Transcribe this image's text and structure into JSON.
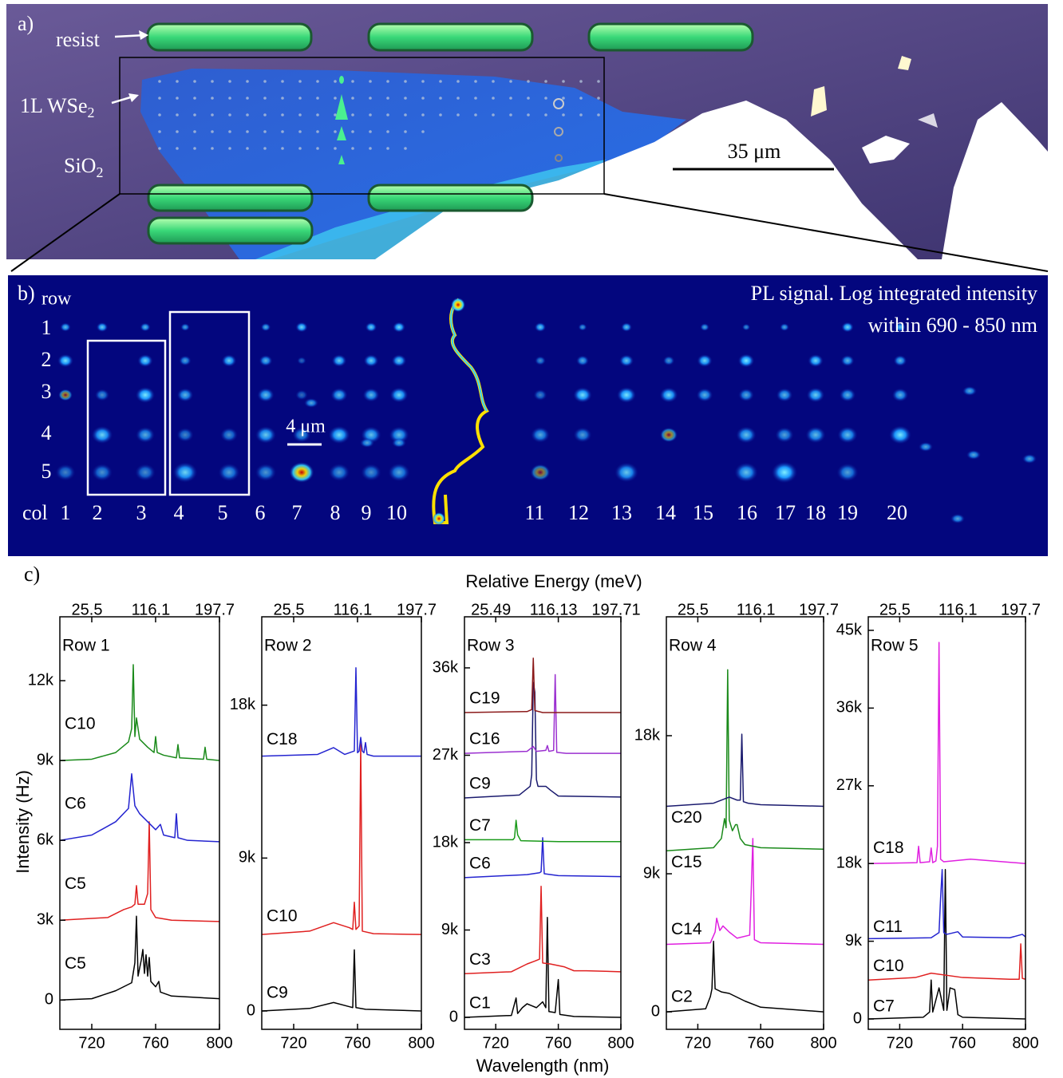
{
  "panel_a": {
    "label": "a)",
    "resist": "resist",
    "flake": {
      "text": "1L WSe",
      "sub": "2"
    },
    "substrate": {
      "text": "SiO",
      "sub": "2"
    },
    "scale_bar": "35 μm"
  },
  "panel_b": {
    "label": "b)",
    "row_label": "row",
    "rows": [
      "1",
      "2",
      "3",
      "4",
      "5"
    ],
    "col_label": "col",
    "cols": [
      "1",
      "2",
      "3",
      "4",
      "5",
      "6",
      "7",
      "8",
      "9",
      "10",
      "11",
      "12",
      "13",
      "14",
      "15",
      "16",
      "17",
      "18",
      "19",
      "20"
    ],
    "title_line1": "PL signal. Log integrated intensity",
    "title_line2": "within 690 - 850 nm",
    "scale_bar": "4 μm"
  },
  "panel_c": {
    "label": "c)",
    "top_axis_label": "Relative Energy (meV)",
    "y_axis_label": "Intensity (Hz)",
    "x_axis_label": "Wavelength (nm)"
  },
  "chart_data": [
    {
      "type": "line",
      "title": "Row 1",
      "xlim": [
        700,
        800
      ],
      "xticks": [
        720,
        760,
        800
      ],
      "x2lim": [
        -23.7,
        197.7
      ],
      "x2ticks": [
        25.5,
        116.1,
        197.7
      ],
      "ylim": [
        -1100,
        14400
      ],
      "yticks": [
        0,
        {
          "value": 3000,
          "label": "3k"
        },
        {
          "value": 6000,
          "label": "6k"
        },
        {
          "value": 9000,
          "label": "9k"
        },
        {
          "value": 12000,
          "label": "12k"
        }
      ],
      "series": [
        {
          "name": "C5",
          "color": "#000000",
          "x": [
            700,
            720,
            735,
            745,
            747,
            748,
            749,
            751,
            752,
            753,
            754,
            755,
            756,
            757,
            760,
            762,
            763,
            770,
            800
          ],
          "values": [
            0,
            50,
            350,
            650,
            1400,
            3150,
            900,
            1500,
            1900,
            1000,
            1700,
            900,
            1600,
            700,
            500,
            700,
            300,
            150,
            50
          ]
        },
        {
          "name": "C5",
          "color": "#e02020",
          "x": [
            700,
            730,
            740,
            745,
            747,
            748,
            749,
            753,
            755,
            756,
            757,
            760,
            770,
            800
          ],
          "values": [
            3000,
            3100,
            3400,
            3500,
            3600,
            4300,
            3600,
            3600,
            4000,
            6700,
            3400,
            3100,
            3000,
            2950
          ]
        },
        {
          "name": "C6",
          "color": "#2424d0",
          "x": [
            700,
            720,
            735,
            743,
            745,
            747,
            750,
            755,
            760,
            763,
            765,
            772,
            773,
            774,
            780,
            800
          ],
          "values": [
            6000,
            6200,
            6700,
            7200,
            8500,
            7300,
            7000,
            6700,
            6400,
            6600,
            6200,
            6100,
            7000,
            6100,
            6000,
            5950
          ]
        },
        {
          "name": "C10",
          "color": "#1a8a1a",
          "x": [
            700,
            720,
            735,
            743,
            745,
            746,
            747,
            748,
            750,
            755,
            759,
            760,
            761,
            765,
            773,
            774,
            775,
            790,
            791,
            792,
            800
          ],
          "values": [
            9000,
            9050,
            9300,
            9700,
            10200,
            12600,
            9900,
            10600,
            9800,
            9500,
            9300,
            9900,
            9300,
            9200,
            9100,
            9600,
            9100,
            9050,
            9500,
            9050,
            9000
          ]
        }
      ]
    },
    {
      "type": "line",
      "title": "Row 2",
      "xlim": [
        700,
        800
      ],
      "xticks": [
        720,
        760,
        800
      ],
      "x2lim": [
        -23.7,
        197.7
      ],
      "x2ticks": [
        25.5,
        116.1,
        197.7
      ],
      "ylim": [
        -1080,
        23200
      ],
      "yticks": [
        0,
        {
          "value": 9000,
          "label": "9k"
        },
        {
          "value": 18000,
          "label": "18k"
        }
      ],
      "series": [
        {
          "name": "C9",
          "color": "#000000",
          "x": [
            700,
            730,
            745,
            755,
            757,
            758,
            759,
            765,
            800
          ],
          "values": [
            0,
            150,
            500,
            250,
            200,
            3600,
            200,
            100,
            0
          ]
        },
        {
          "name": "C10",
          "color": "#e02020",
          "x": [
            700,
            730,
            745,
            755,
            757,
            758,
            759,
            761,
            762,
            763,
            770,
            800
          ],
          "values": [
            4500,
            4700,
            5200,
            4900,
            4800,
            6400,
            4800,
            5000,
            15800,
            4700,
            4550,
            4500
          ]
        },
        {
          "name": "C18",
          "color": "#2424d0",
          "x": [
            700,
            735,
            745,
            752,
            758,
            759,
            760,
            761,
            762,
            763,
            764,
            765,
            766,
            770,
            800
          ],
          "values": [
            15000,
            15100,
            15500,
            15100,
            15300,
            20200,
            15200,
            15300,
            16100,
            15300,
            15200,
            15800,
            15100,
            15000,
            15000
          ]
        }
      ]
    },
    {
      "type": "line",
      "title": "Row 3",
      "xlim": [
        700,
        800
      ],
      "xticks": [
        720,
        760,
        800
      ],
      "x2lim": [
        -23.71,
        197.71
      ],
      "x2ticks": [
        25.49,
        116.13,
        197.71
      ],
      "ylim": [
        -1230,
        41260
      ],
      "yticks": [
        0,
        {
          "value": 9000,
          "label": "9k"
        },
        {
          "value": 18000,
          "label": "18k"
        },
        {
          "value": 27000,
          "label": "27k"
        },
        {
          "value": 36000,
          "label": "36k"
        }
      ],
      "series": [
        {
          "name": "C1",
          "color": "#000000",
          "x": [
            700,
            730,
            733,
            734,
            737,
            740,
            743,
            746,
            750,
            752,
            753,
            754,
            758,
            760,
            761,
            770,
            800
          ],
          "values": [
            0,
            200,
            2000,
            400,
            1000,
            1400,
            1200,
            1000,
            1600,
            1000,
            10300,
            600,
            500,
            3900,
            300,
            100,
            0
          ]
        },
        {
          "name": "C3",
          "color": "#e02020",
          "x": [
            700,
            730,
            740,
            745,
            748,
            749,
            750,
            755,
            764,
            770,
            778,
            800
          ],
          "values": [
            4500,
            4700,
            5500,
            5800,
            6000,
            13500,
            5600,
            5500,
            5200,
            4800,
            4800,
            4700
          ]
        },
        {
          "name": "C6",
          "color": "#2424d0",
          "x": [
            700,
            740,
            748,
            749,
            750,
            751,
            760,
            800
          ],
          "values": [
            14400,
            14700,
            14900,
            15000,
            18500,
            14800,
            14600,
            14500
          ]
        },
        {
          "name": "C7",
          "color": "#1a9a1a",
          "x": [
            700,
            731,
            732,
            733,
            734,
            736,
            760,
            800
          ],
          "values": [
            18300,
            18300,
            18500,
            20300,
            18800,
            18200,
            18100,
            18100
          ]
        },
        {
          "name": "C9",
          "color": "#1a1a6e",
          "x": [
            700,
            735,
            742,
            743,
            744,
            745,
            746,
            747,
            752,
            755,
            760,
            800
          ],
          "values": [
            22600,
            22900,
            23800,
            25000,
            34500,
            33500,
            24500,
            23800,
            23800,
            23400,
            22800,
            22700
          ]
        },
        {
          "name": "C16",
          "color": "#9b30d0",
          "x": [
            700,
            740,
            744,
            746,
            752,
            753,
            754,
            757,
            758,
            759,
            765,
            800
          ],
          "values": [
            27200,
            27400,
            27900,
            27400,
            27500,
            28000,
            27400,
            27500,
            35300,
            27300,
            27200,
            27200
          ]
        },
        {
          "name": "C19",
          "color": "#8b1a1a",
          "x": [
            700,
            740,
            743,
            744,
            745,
            750,
            800
          ],
          "values": [
            31400,
            31500,
            31700,
            37000,
            31600,
            31400,
            31400
          ]
        }
      ]
    },
    {
      "type": "line",
      "title": "Row 4",
      "xlim": [
        700,
        800
      ],
      "xticks": [
        720,
        760,
        800
      ],
      "x2lim": [
        -23.7,
        197.7
      ],
      "x2ticks": [
        25.5,
        116.1,
        197.7
      ],
      "ylim": [
        -1140,
        25750
      ],
      "yticks": [
        0,
        {
          "value": 9000,
          "label": "9k"
        },
        {
          "value": 18000,
          "label": "18k"
        }
      ],
      "series": [
        {
          "name": "C2",
          "color": "#000000",
          "x": [
            700,
            725,
            728,
            729,
            730,
            731,
            735,
            740,
            750,
            760,
            800
          ],
          "values": [
            0,
            200,
            1000,
            1500,
            4600,
            1500,
            1300,
            1200,
            700,
            300,
            0
          ]
        },
        {
          "name": "C14",
          "color": "#e020e0",
          "x": [
            700,
            728,
            731,
            732,
            734,
            736,
            740,
            745,
            753,
            754,
            755,
            756,
            760,
            800
          ],
          "values": [
            4400,
            4500,
            5200,
            6100,
            5300,
            5600,
            5200,
            4800,
            5000,
            8000,
            11300,
            4700,
            4500,
            4400
          ]
        },
        {
          "name": "C15",
          "color": "#1a8a1a",
          "x": [
            700,
            730,
            735,
            737,
            738,
            739,
            740,
            742,
            744,
            745,
            747,
            750,
            760,
            800
          ],
          "values": [
            10500,
            10700,
            11300,
            12600,
            12000,
            22300,
            12500,
            11800,
            12200,
            12200,
            11300,
            10900,
            10700,
            10600
          ]
        },
        {
          "name": "C20",
          "color": "#1a1a6e",
          "x": [
            700,
            730,
            740,
            745,
            747,
            748,
            749,
            752,
            760,
            800
          ],
          "values": [
            13400,
            13600,
            14000,
            13800,
            13800,
            18100,
            13700,
            13600,
            13500,
            13400
          ]
        }
      ]
    },
    {
      "type": "line",
      "title": "Row 5",
      "xlim": [
        700,
        800
      ],
      "xticks": [
        720,
        760,
        800
      ],
      "x2lim": [
        -23.7,
        197.7
      ],
      "x2ticks": [
        25.5,
        116.1,
        197.7
      ],
      "ylim": [
        -1200,
        46570
      ],
      "yticks": [
        0,
        {
          "value": 9000,
          "label": "9k"
        },
        {
          "value": 18000,
          "label": "18k"
        },
        {
          "value": 27000,
          "label": "27k"
        },
        {
          "value": 36000,
          "label": "36k"
        },
        {
          "value": 45000,
          "label": "45k"
        }
      ],
      "series": [
        {
          "name": "C7",
          "color": "#000000",
          "x": [
            700,
            735,
            739,
            740,
            741,
            745,
            748,
            749,
            750,
            752,
            755,
            757,
            760,
            800
          ],
          "values": [
            0,
            200,
            800,
            4500,
            800,
            3600,
            1000,
            17300,
            1000,
            3600,
            3400,
            500,
            200,
            0
          ]
        },
        {
          "name": "C10",
          "color": "#e02020",
          "x": [
            700,
            730,
            740,
            760,
            790,
            796,
            797,
            798,
            800
          ],
          "values": [
            4500,
            4800,
            5300,
            4800,
            4600,
            4600,
            8700,
            4700,
            4600
          ]
        },
        {
          "name": "C11",
          "color": "#2424d0",
          "x": [
            700,
            740,
            745,
            746,
            747,
            748,
            750,
            757,
            760,
            790,
            798,
            800
          ],
          "values": [
            9300,
            9400,
            10000,
            14000,
            17300,
            10000,
            9800,
            10100,
            9500,
            9400,
            9800,
            9500
          ]
        },
        {
          "name": "C18",
          "color": "#e020e0",
          "x": [
            700,
            731,
            732,
            733,
            739,
            740,
            741,
            743,
            744,
            745,
            746,
            748,
            765,
            800
          ],
          "values": [
            18000,
            18100,
            20000,
            18100,
            18200,
            19800,
            18100,
            18300,
            20000,
            43600,
            18500,
            18200,
            18500,
            18000
          ]
        }
      ]
    }
  ]
}
